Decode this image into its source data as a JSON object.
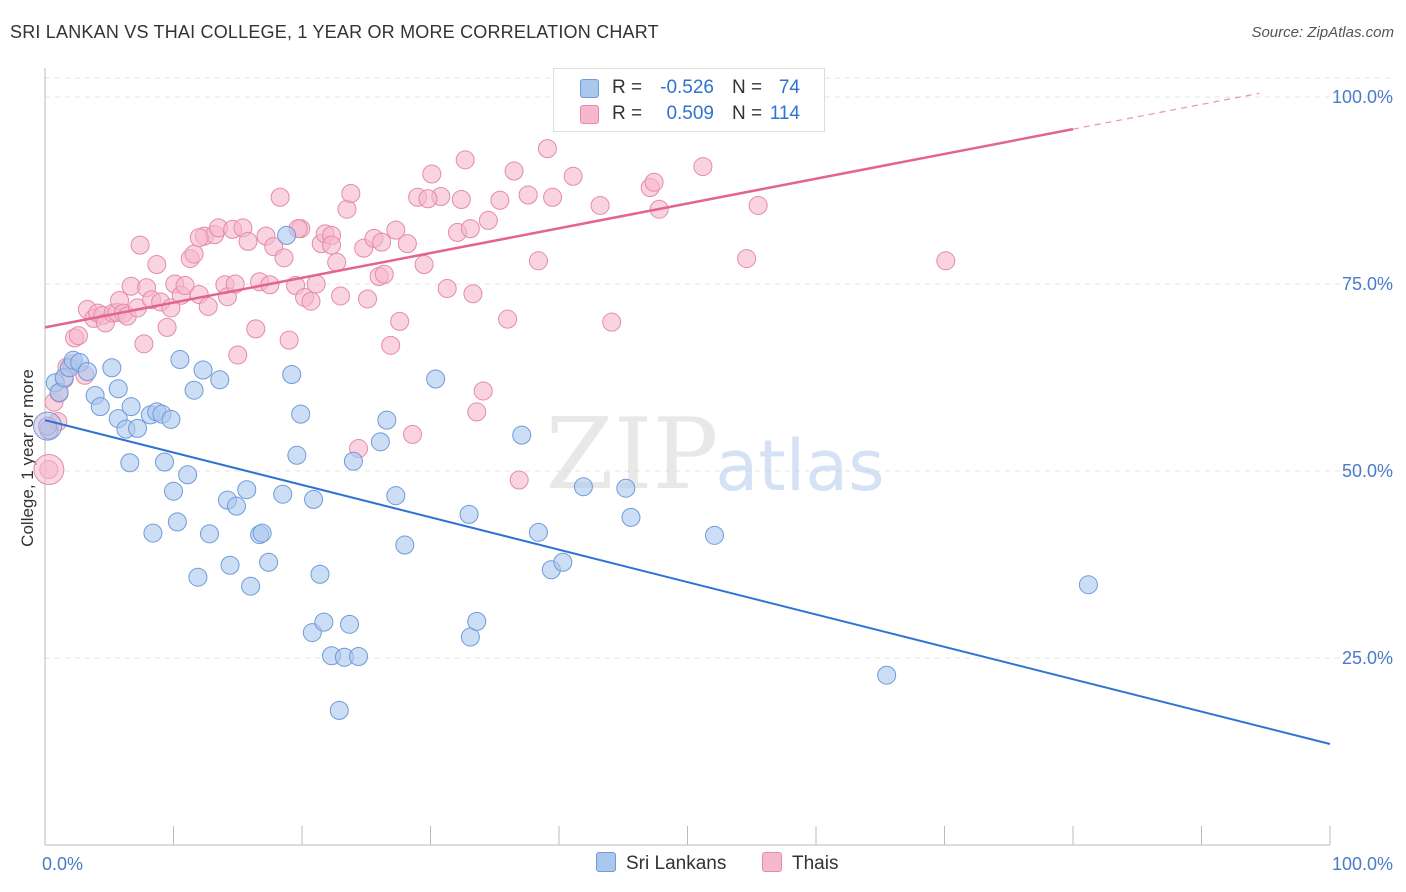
{
  "title": "SRI LANKAN VS THAI COLLEGE, 1 YEAR OR MORE CORRELATION CHART",
  "source": "Source: ZipAtlas.com",
  "watermark": {
    "zip": "ZIP",
    "atlas": "atlas"
  },
  "colors": {
    "blue_fill": "#aac8ee",
    "blue_stroke": "#6f9bd8",
    "blue_line": "#2e73d2",
    "pink_fill": "#f5b8cc",
    "pink_stroke": "#e58aab",
    "pink_line": "#e2648f",
    "tick_text": "#4a7bc8",
    "grid": "#e3e3e3"
  },
  "stats": {
    "r_label": "R =",
    "n_label": "N =",
    "rows": [
      {
        "series": "Sri Lankans",
        "r": "-0.526",
        "n": "74"
      },
      {
        "series": "Thais",
        "r": "0.509",
        "n": "114"
      }
    ]
  },
  "legend": [
    {
      "label": "Sri Lankans"
    },
    {
      "label": "Thais"
    }
  ],
  "chart_data": {
    "type": "scatter",
    "title": "SRI LANKAN VS THAI COLLEGE, 1 YEAR OR MORE CORRELATION CHART",
    "xlabel": "",
    "ylabel": "College, 1 year or more",
    "xlim": [
      0,
      100
    ],
    "ylim": [
      0,
      100
    ],
    "x_tick_labels": [
      {
        "value": 0,
        "label": "0.0%"
      },
      {
        "value": 100,
        "label": "100.0%"
      }
    ],
    "y_tick_labels": [
      {
        "value": 25,
        "label": "25.0%"
      },
      {
        "value": 50,
        "label": "50.0%"
      },
      {
        "value": 75,
        "label": "75.0%"
      },
      {
        "value": 100,
        "label": "100.0%"
      }
    ],
    "series": [
      {
        "name": "Sri Lankans",
        "r": -0.526,
        "n": 74,
        "trend": {
          "x": [
            0,
            100
          ],
          "y": [
            56.8,
            13.5
          ]
        },
        "points": [
          [
            0.3,
            55.5
          ],
          [
            0.8,
            61.8
          ],
          [
            1.1,
            60.5
          ],
          [
            1.5,
            62.5
          ],
          [
            1.9,
            63.8
          ],
          [
            2.2,
            64.8
          ],
          [
            2.7,
            64.5
          ],
          [
            3.3,
            63.3
          ],
          [
            3.9,
            60.1
          ],
          [
            4.3,
            58.6
          ],
          [
            5.2,
            63.8
          ],
          [
            5.7,
            61.0
          ],
          [
            5.7,
            57.0
          ],
          [
            6.3,
            55.6
          ],
          [
            6.6,
            51.1
          ],
          [
            6.7,
            58.6
          ],
          [
            7.2,
            55.7
          ],
          [
            8.2,
            57.5
          ],
          [
            8.7,
            57.9
          ],
          [
            8.4,
            41.7
          ],
          [
            9.1,
            57.6
          ],
          [
            9.3,
            51.2
          ],
          [
            9.8,
            56.9
          ],
          [
            10.0,
            47.3
          ],
          [
            10.3,
            43.2
          ],
          [
            10.5,
            64.9
          ],
          [
            11.1,
            49.5
          ],
          [
            11.6,
            60.8
          ],
          [
            11.9,
            35.8
          ],
          [
            12.3,
            63.5
          ],
          [
            12.8,
            41.6
          ],
          [
            13.6,
            62.2
          ],
          [
            14.2,
            46.1
          ],
          [
            14.4,
            37.4
          ],
          [
            14.9,
            45.3
          ],
          [
            15.7,
            47.5
          ],
          [
            16.0,
            34.6
          ],
          [
            16.7,
            41.5
          ],
          [
            16.9,
            41.7
          ],
          [
            17.4,
            37.8
          ],
          [
            18.5,
            46.9
          ],
          [
            18.8,
            81.5
          ],
          [
            19.2,
            62.9
          ],
          [
            19.6,
            52.1
          ],
          [
            19.9,
            57.6
          ],
          [
            20.8,
            28.4
          ],
          [
            20.9,
            46.2
          ],
          [
            21.4,
            36.2
          ],
          [
            21.7,
            29.8
          ],
          [
            22.3,
            25.3
          ],
          [
            22.9,
            18.0
          ],
          [
            23.3,
            25.1
          ],
          [
            23.7,
            29.5
          ],
          [
            24.0,
            51.3
          ],
          [
            24.4,
            25.2
          ],
          [
            26.1,
            53.9
          ],
          [
            26.6,
            56.8
          ],
          [
            27.3,
            46.7
          ],
          [
            28.0,
            40.1
          ],
          [
            30.4,
            62.3
          ],
          [
            33.0,
            44.2
          ],
          [
            33.1,
            27.8
          ],
          [
            33.6,
            29.9
          ],
          [
            37.1,
            54.8
          ],
          [
            38.4,
            41.8
          ],
          [
            39.4,
            36.8
          ],
          [
            40.3,
            37.8
          ],
          [
            41.9,
            47.9
          ],
          [
            45.2,
            47.7
          ],
          [
            45.6,
            43.8
          ],
          [
            52.1,
            41.4
          ],
          [
            65.5,
            22.7
          ],
          [
            81.2,
            34.8
          ],
          [
            0.2,
            56.0
          ]
        ]
      },
      {
        "name": "Thais",
        "r": 0.509,
        "n": 114,
        "trend": {
          "x": [
            0,
            80
          ],
          "y": [
            69.2,
            95.7
          ]
        },
        "trend_dashed": {
          "x": [
            80,
            94.5
          ],
          "y": [
            95.7,
            100.5
          ]
        },
        "points": [
          [
            0.3,
            50.2
          ],
          [
            0.7,
            59.2
          ],
          [
            1.1,
            60.4
          ],
          [
            1.5,
            62.3
          ],
          [
            1.7,
            63.9
          ],
          [
            2.3,
            67.8
          ],
          [
            2.6,
            68.1
          ],
          [
            3.1,
            62.8
          ],
          [
            3.3,
            71.6
          ],
          [
            3.8,
            70.4
          ],
          [
            4.1,
            71.1
          ],
          [
            4.5,
            70.8
          ],
          [
            4.7,
            69.8
          ],
          [
            5.3,
            71.1
          ],
          [
            5.6,
            71.2
          ],
          [
            5.8,
            72.8
          ],
          [
            6.1,
            71.1
          ],
          [
            6.4,
            70.7
          ],
          [
            6.7,
            74.7
          ],
          [
            7.2,
            71.8
          ],
          [
            7.4,
            80.2
          ],
          [
            7.7,
            67.0
          ],
          [
            7.9,
            74.5
          ],
          [
            8.3,
            72.9
          ],
          [
            8.7,
            77.6
          ],
          [
            9.0,
            72.6
          ],
          [
            9.5,
            69.2
          ],
          [
            9.8,
            71.8
          ],
          [
            10.1,
            75.0
          ],
          [
            10.6,
            73.5
          ],
          [
            10.9,
            74.8
          ],
          [
            11.3,
            78.4
          ],
          [
            11.6,
            79.0
          ],
          [
            12.0,
            73.6
          ],
          [
            12.4,
            81.4
          ],
          [
            12.7,
            72.0
          ],
          [
            13.2,
            81.6
          ],
          [
            13.5,
            82.5
          ],
          [
            14.0,
            74.9
          ],
          [
            14.2,
            73.3
          ],
          [
            14.6,
            82.3
          ],
          [
            15.0,
            65.5
          ],
          [
            15.4,
            82.5
          ],
          [
            15.8,
            80.7
          ],
          [
            16.4,
            69.0
          ],
          [
            16.7,
            75.3
          ],
          [
            17.2,
            81.4
          ],
          [
            17.5,
            74.9
          ],
          [
            17.8,
            80.0
          ],
          [
            18.3,
            86.6
          ],
          [
            18.6,
            78.5
          ],
          [
            19.0,
            67.5
          ],
          [
            19.5,
            74.8
          ],
          [
            19.9,
            82.4
          ],
          [
            20.2,
            73.2
          ],
          [
            20.7,
            72.7
          ],
          [
            21.1,
            75.0
          ],
          [
            21.5,
            80.4
          ],
          [
            21.8,
            81.7
          ],
          [
            22.3,
            81.5
          ],
          [
            22.7,
            77.9
          ],
          [
            23.0,
            73.4
          ],
          [
            23.5,
            85.0
          ],
          [
            23.8,
            87.1
          ],
          [
            24.4,
            53.0
          ],
          [
            24.8,
            79.8
          ],
          [
            25.1,
            73.0
          ],
          [
            25.6,
            81.1
          ],
          [
            26.0,
            76.0
          ],
          [
            26.4,
            76.3
          ],
          [
            26.9,
            66.8
          ],
          [
            27.3,
            82.2
          ],
          [
            27.6,
            70.0
          ],
          [
            28.2,
            80.4
          ],
          [
            28.6,
            54.9
          ],
          [
            29.0,
            86.6
          ],
          [
            29.5,
            77.6
          ],
          [
            30.1,
            89.7
          ],
          [
            30.8,
            86.7
          ],
          [
            31.3,
            74.4
          ],
          [
            32.1,
            81.9
          ],
          [
            32.4,
            86.3
          ],
          [
            32.7,
            91.6
          ],
          [
            33.3,
            73.7
          ],
          [
            33.6,
            57.9
          ],
          [
            34.1,
            60.7
          ],
          [
            34.5,
            83.5
          ],
          [
            35.4,
            86.2
          ],
          [
            36.0,
            70.3
          ],
          [
            36.5,
            90.1
          ],
          [
            36.9,
            48.8
          ],
          [
            37.6,
            86.9
          ],
          [
            38.4,
            78.1
          ],
          [
            39.1,
            93.1
          ],
          [
            39.5,
            86.6
          ],
          [
            41.1,
            89.4
          ],
          [
            43.2,
            85.5
          ],
          [
            44.1,
            69.9
          ],
          [
            47.1,
            87.9
          ],
          [
            47.4,
            88.6
          ],
          [
            47.8,
            85.0
          ],
          [
            51.2,
            90.7
          ],
          [
            54.6,
            78.4
          ],
          [
            55.5,
            85.5
          ],
          [
            70.1,
            78.1
          ],
          [
            1.0,
            56.6
          ],
          [
            2.1,
            64.3
          ],
          [
            12.0,
            81.2
          ],
          [
            14.8,
            75.0
          ],
          [
            19.7,
            82.4
          ],
          [
            22.3,
            80.2
          ],
          [
            26.2,
            80.6
          ],
          [
            29.8,
            86.4
          ],
          [
            33.1,
            82.4
          ]
        ]
      }
    ]
  }
}
